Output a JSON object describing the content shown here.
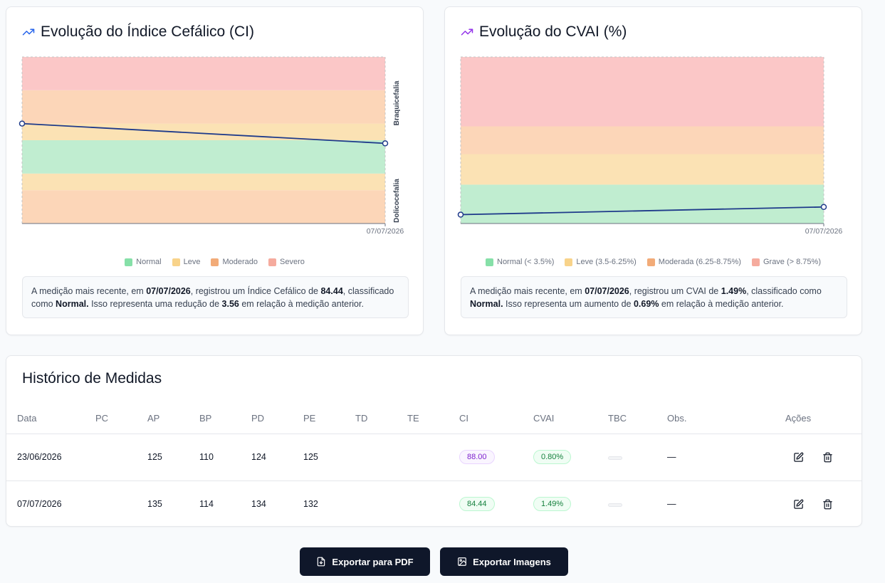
{
  "colors": {
    "normal": "#c0edd0",
    "leve": "#fbe2b4",
    "moderado": "#fcd6b8",
    "severo": "#fbc7c7",
    "line": "#1e3a8a",
    "trend_blue": "#2563eb",
    "trend_purple": "#9333ea"
  },
  "ci_card": {
    "title": "Evolução do Índice Cefálico (CI)",
    "icon": "trending-up-icon",
    "band_label_top": "Braquicefalia",
    "band_label_bottom": "Dolicocefalia",
    "x_tick": "07/07/2026",
    "legend": [
      "Normal",
      "Leve",
      "Moderado",
      "Severo"
    ],
    "summary": {
      "p1": "A medição mais recente, em ",
      "date": "07/07/2026",
      "p2": ", registrou um Índice Cefálico de ",
      "value": "84.44",
      "p3": ", classificado como ",
      "classification": "Normal.",
      "p4": " Isso representa uma redução de ",
      "delta": "3.56",
      "p5": " em relação à medição anterior."
    }
  },
  "cvai_card": {
    "title": "Evolução do CVAI (%)",
    "icon": "trending-up-icon",
    "x_tick": "07/07/2026",
    "legend": [
      "Normal (< 3.5%)",
      "Leve (3.5-6.25%)",
      "Moderada (6.25-8.75%)",
      "Grave (> 8.75%)"
    ],
    "summary": {
      "p1": "A medição mais recente, em ",
      "date": "07/07/2026",
      "p2": ", registrou um CVAI de ",
      "value": "1.49%",
      "p3": ", classificado como ",
      "classification": "Normal.",
      "p4": " Isso representa um aumento de ",
      "delta": "0.69%",
      "p5": " em relação à medição anterior."
    }
  },
  "chart_data": [
    {
      "type": "line",
      "x": [
        "23/06/2026",
        "07/07/2026"
      ],
      "series": [
        {
          "values": [
            88.0,
            84.44
          ]
        }
      ],
      "ylim": [
        70,
        100
      ],
      "bands": [
        {
          "from": 70,
          "to": 76,
          "class": "Moderado"
        },
        {
          "from": 76,
          "to": 79,
          "class": "Leve"
        },
        {
          "from": 79,
          "to": 85,
          "class": "Normal"
        },
        {
          "from": 85,
          "to": 88,
          "class": "Leve"
        },
        {
          "from": 88,
          "to": 94,
          "class": "Moderado"
        },
        {
          "from": 94,
          "to": 100,
          "class": "Severo"
        }
      ],
      "band_labels": [
        "Braquicefalia",
        "Dolicocefalia"
      ],
      "x_tick_labels": [
        "07/07/2026"
      ],
      "legend": [
        "Normal",
        "Leve",
        "Moderado",
        "Severo"
      ],
      "grid": false
    },
    {
      "type": "line",
      "x": [
        "23/06/2026",
        "07/07/2026"
      ],
      "series": [
        {
          "values": [
            0.8,
            1.49
          ]
        }
      ],
      "ylim": [
        0,
        15
      ],
      "bands": [
        {
          "from": 0,
          "to": 3.5,
          "class": "Normal (< 3.5%)"
        },
        {
          "from": 3.5,
          "to": 6.25,
          "class": "Leve (3.5-6.25%)"
        },
        {
          "from": 6.25,
          "to": 8.75,
          "class": "Moderada (6.25-8.75%)"
        },
        {
          "from": 8.75,
          "to": 15,
          "class": "Grave (> 8.75%)"
        }
      ],
      "x_tick_labels": [
        "07/07/2026"
      ],
      "legend": [
        "Normal (< 3.5%)",
        "Leve (3.5-6.25%)",
        "Moderada (6.25-8.75%)",
        "Grave (> 8.75%)"
      ],
      "grid": false
    }
  ],
  "history": {
    "title": "Histórico de Medidas",
    "columns": [
      "Data",
      "PC",
      "AP",
      "BP",
      "PD",
      "PE",
      "TD",
      "TE",
      "CI",
      "CVAI",
      "TBC",
      "Obs.",
      "Ações"
    ],
    "rows": [
      {
        "date": "23/06/2026",
        "pc": "",
        "ap": "125",
        "bp": "110",
        "pd": "124",
        "pe": "125",
        "td": "",
        "te": "",
        "ci": "88.00",
        "ci_color": "purple",
        "cvai": "0.80%",
        "tbc": "",
        "obs": "—"
      },
      {
        "date": "07/07/2026",
        "pc": "",
        "ap": "135",
        "bp": "114",
        "pd": "134",
        "pe": "132",
        "td": "",
        "te": "",
        "ci": "84.44",
        "ci_color": "green",
        "cvai": "1.49%",
        "tbc": "",
        "obs": "—"
      }
    ]
  },
  "buttons": {
    "pdf": "Exportar para PDF",
    "pdf_icon": "file-download-icon",
    "images": "Exportar Imagens",
    "images_icon": "image-download-icon"
  }
}
